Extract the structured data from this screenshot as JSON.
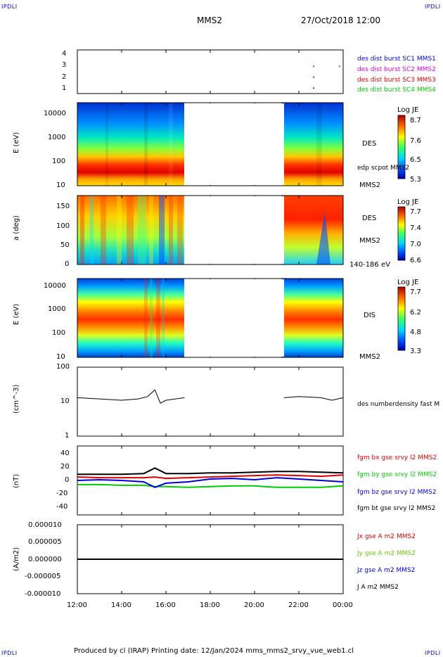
{
  "corner_labels": {
    "tl": "IPDLI",
    "tr": "IPDLI",
    "bl": "IPDLI",
    "br": "IPDLI"
  },
  "header": {
    "title": "MMS2",
    "date": "27/Oct/2018 12:00"
  },
  "footer": {
    "text": "Produced by cl (IRAP)   Printing date: 12/Jan/2024   mms_mms2_srvy_vue_web1.cl"
  },
  "time_axis": {
    "ticks": [
      "12:00",
      "14:00",
      "16:00",
      "18:00",
      "20:00",
      "22:00",
      "00:00"
    ]
  },
  "colors": {
    "mms1": "#0000dd",
    "mms2": "#dd00dd",
    "mms3": "#dd0000",
    "mms4": "#00cc00",
    "bx": "#dd0000",
    "by": "#00cc00",
    "bz": "#0000dd",
    "bt": "#000000"
  },
  "panels": {
    "burst": {
      "yticks": [
        "4",
        "3",
        "2",
        "1"
      ],
      "legend": [
        "des dist burst SC1 MMS1",
        "des dist burst SC2 MMS2",
        "des dist burst SC3 MMS3",
        "des dist burst SC4 MMS4"
      ]
    },
    "des_energy": {
      "ylabel": "E (eV)",
      "yticks": [
        "10000",
        "1000",
        "100",
        "10"
      ],
      "name": "DES",
      "sc": "MMS2",
      "overlay": "edp scpot MMS2",
      "cbar_title": "Log JE",
      "cbar_ticks": [
        "8.7",
        "7.6",
        "6.5",
        "5.3"
      ]
    },
    "des_pitch": {
      "ylabel": "a (deg)",
      "yticks": [
        "150",
        "100",
        "50",
        "0"
      ],
      "name": "DES",
      "sc": "MMS2",
      "range": "140-186 eV",
      "cbar_title": "Log JE",
      "cbar_ticks": [
        "7.7",
        "7.4",
        "7.0",
        "6.6"
      ]
    },
    "dis_energy": {
      "ylabel": "E (eV)",
      "yticks": [
        "10000",
        "1000",
        "100",
        "10"
      ],
      "name": "DIS",
      "sc": "MMS2",
      "cbar_title": "Log JE",
      "cbar_ticks": [
        "7.7",
        "6.2",
        "4.8",
        "3.3"
      ]
    },
    "density": {
      "ylabel": "(cm^-3)",
      "yticks": [
        "100",
        "10",
        "1"
      ],
      "legend": "des numberdensity fast M"
    },
    "bfield": {
      "ylabel": "(nT)",
      "yticks": [
        "40",
        "20",
        "0",
        "-20",
        "-40"
      ],
      "legend": [
        "fgm bx gse srvy l2 MMS2",
        "fgm by gse srvy l2 MMS2",
        "fgm bz gse srvy l2 MMS2",
        "fgm bt gse srvy l2 MMS2"
      ]
    },
    "current": {
      "ylabel": "(A/m2)",
      "yticks": [
        "0.000010",
        "0.000005",
        "0.000000",
        "-0.000005",
        "-0.000010"
      ],
      "legend": [
        "Jx gse A m2 MMS2",
        "Jy gse A m2 MMS2",
        "Jz gse A m2 MMS2",
        "J A m2 MMS2"
      ]
    }
  },
  "chart_data": [
    {
      "type": "scatter",
      "xlabel": "",
      "ylabel": "",
      "ylim": [
        0.5,
        4.5
      ],
      "x": [
        "22:40",
        "22:40",
        "22:40",
        "23:50"
      ],
      "y": [
        3,
        2,
        1,
        3
      ],
      "series_colors": [
        "#dd0000",
        "#dd0000",
        "#0000dd",
        "#dd0000"
      ]
    },
    {
      "type": "heatmap",
      "ylabel": "E (eV)",
      "yscale": "log",
      "ylim": [
        10,
        30000
      ],
      "data_gaps": [
        [
          "16:50",
          "21:20"
        ]
      ],
      "colorbar": {
        "title": "Log JE",
        "range": [
          5.3,
          8.7
        ]
      }
    },
    {
      "type": "heatmap",
      "ylabel": "a (deg)",
      "ylim": [
        0,
        180
      ],
      "data_gaps": [
        [
          "16:50",
          "21:20"
        ]
      ],
      "colorbar": {
        "title": "Log JE",
        "range": [
          6.6,
          7.7
        ]
      }
    },
    {
      "type": "heatmap",
      "ylabel": "E (eV)",
      "yscale": "log",
      "ylim": [
        10,
        30000
      ],
      "data_gaps": [
        [
          "16:50",
          "21:20"
        ]
      ],
      "colorbar": {
        "title": "Log JE",
        "range": [
          3.3,
          7.7
        ]
      }
    },
    {
      "type": "line",
      "ylabel": "(cm^-3)",
      "yscale": "log",
      "ylim": [
        1,
        100
      ],
      "x": [
        "12:00",
        "13:00",
        "14:00",
        "14:45",
        "15:10",
        "15:30",
        "15:45",
        "16:00",
        "16:50",
        "21:20",
        "22:00",
        "23:00",
        "23:30",
        "00:00"
      ],
      "values": [
        13,
        12,
        11,
        12,
        14,
        22,
        9,
        11,
        13,
        13,
        14,
        13,
        11,
        13
      ]
    },
    {
      "type": "line",
      "ylabel": "(nT)",
      "ylim": [
        -50,
        50
      ],
      "x": [
        "12:00",
        "13:00",
        "14:00",
        "15:00",
        "15:30",
        "16:00",
        "17:00",
        "18:00",
        "19:00",
        "20:00",
        "21:00",
        "22:00",
        "23:00",
        "00:00"
      ],
      "series": [
        {
          "name": "fgm bx gse srvy l2 MMS2",
          "values": [
            5,
            4,
            4,
            4,
            5,
            3,
            4,
            5,
            6,
            7,
            8,
            7,
            6,
            8
          ]
        },
        {
          "name": "fgm by gse srvy l2 MMS2",
          "values": [
            -6,
            -6,
            -7,
            -7,
            -9,
            -9,
            -10,
            -9,
            -8,
            -8,
            -10,
            -10,
            -10,
            -8
          ]
        },
        {
          "name": "fgm bz gse srvy l2 MMS2",
          "values": [
            0,
            1,
            0,
            -2,
            -10,
            -4,
            -2,
            2,
            3,
            1,
            4,
            2,
            0,
            -2
          ]
        },
        {
          "name": "fgm bt gse srvy l2 MMS2",
          "values": [
            9,
            9,
            9,
            10,
            18,
            10,
            10,
            11,
            11,
            12,
            13,
            13,
            12,
            11
          ]
        }
      ]
    },
    {
      "type": "line",
      "ylabel": "(A/m2)",
      "ylim": [
        -1e-05,
        1e-05
      ],
      "x": [
        "12:00",
        "15:20",
        "15:40",
        "00:00"
      ],
      "series": [
        {
          "name": "J A m2 MMS2",
          "values": [
            0,
            0,
            0,
            0
          ]
        }
      ]
    }
  ]
}
